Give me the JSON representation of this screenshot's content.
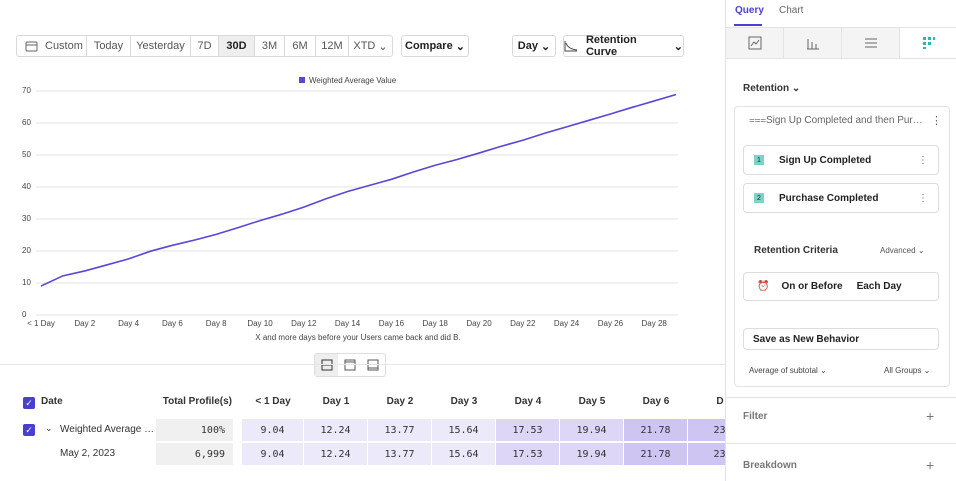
{
  "toolbar": {
    "date_ranges": [
      "Custom",
      "Today",
      "Yesterday",
      "7D",
      "30D",
      "3M",
      "6M",
      "12M",
      "XTD"
    ],
    "compare": "Compare",
    "interval": "Day",
    "chart_kind": "Retention Curve"
  },
  "chart_data": {
    "type": "line",
    "x_label": "X and more days before your Users came back and did B.",
    "categories": [
      "< 1 Day",
      null,
      "Day 2",
      null,
      "Day 4",
      null,
      "Day 6",
      null,
      "Day 8",
      null,
      "Day 10",
      null,
      "Day 12",
      null,
      "Day 14",
      null,
      "Day 16",
      null,
      "Day 18",
      null,
      "Day 20",
      null,
      "Day 22",
      null,
      "Day 24",
      null,
      "Day 26",
      null,
      "Day 28",
      null
    ],
    "series": [
      {
        "name": "Weighted Average Value",
        "color": "#5b44d8",
        "values": [
          9.04,
          12.24,
          13.77,
          15.64,
          17.53,
          19.94,
          21.78,
          23.4,
          25.2,
          27.3,
          29.5,
          31.5,
          33.7,
          36.3,
          38.6,
          40.5,
          42.4,
          44.7,
          46.8,
          48.6,
          50.6,
          52.7,
          54.6,
          56.8,
          58.8,
          60.8,
          62.8,
          64.9,
          66.9,
          68.9
        ]
      }
    ],
    "ylim": [
      0,
      70
    ],
    "yticks": [
      0,
      10,
      20,
      30,
      40,
      50,
      60,
      70
    ],
    "grid": true
  },
  "table": {
    "columns": [
      "Date",
      "Total Profile(s)",
      "< 1 Day",
      "Day 1",
      "Day 2",
      "Day 3",
      "Day 4",
      "Day 5",
      "Day 6",
      "D"
    ],
    "rows": [
      [
        "Weighted Average …",
        "100%",
        "9.04",
        "12.24",
        "13.77",
        "15.64",
        "17.53",
        "19.94",
        "21.78",
        "23"
      ],
      [
        "May 2, 2023",
        "6,999",
        "9.04",
        "12.24",
        "13.77",
        "15.64",
        "17.53",
        "19.94",
        "21.78",
        "23"
      ]
    ]
  },
  "panel": {
    "tabs": [
      "Query",
      "Chart"
    ],
    "section": "Retention",
    "metric": "Sign Up Completed and then Pur…",
    "steps": [
      {
        "number": "1",
        "label": "Sign Up Completed"
      },
      {
        "number": "2",
        "label": "Purchase Completed"
      }
    ],
    "criteria_title": "Retention Criteria",
    "advanced": "Advanced",
    "criteria": [
      "On or Before",
      "Each Day"
    ],
    "save": "Save as New Behavior",
    "aggregation": "Average of subtotal",
    "groups": "All Groups",
    "filter": "Filter",
    "breakdown": "Breakdown"
  }
}
